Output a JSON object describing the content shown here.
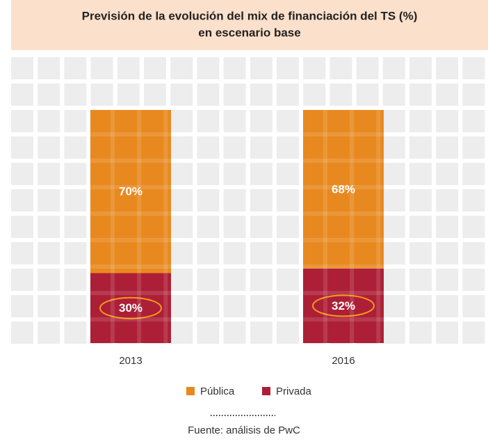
{
  "chart_data": {
    "type": "stacked_bar",
    "title": "Previsión de la evolución del mix de financiación del TS (%)",
    "subtitle": "en escenario base",
    "categories": [
      "2013",
      "2016"
    ],
    "series": [
      {
        "name": "Pública",
        "color": "#e8891f",
        "values": [
          70,
          68
        ],
        "value_labels": [
          "70%",
          "68%"
        ]
      },
      {
        "name": "Privada",
        "color": "#ad1f36",
        "values": [
          30,
          32
        ],
        "value_labels": [
          "30%",
          "32%"
        ]
      }
    ],
    "ylim": [
      0,
      100
    ],
    "source": "Fuente: análisis de PwC"
  }
}
